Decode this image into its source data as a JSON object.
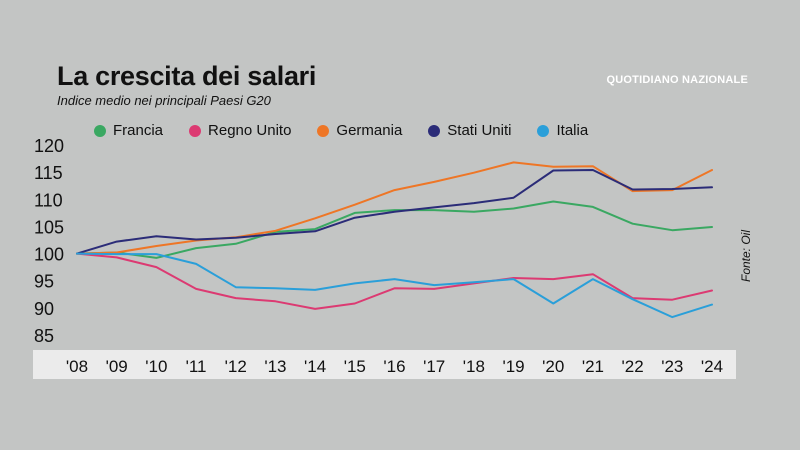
{
  "header": {
    "title": "La crescita dei salari",
    "subtitle": "Indice medio nei principali Paesi G20",
    "brand": "QUOTIDIANO NAZIONALE",
    "source": "Fonte: Oil"
  },
  "colors": {
    "Francia": "#3aa862",
    "Regno Unito": "#dc3a72",
    "Germania": "#ee7626",
    "Stati Uniti": "#2b2c78",
    "Italia": "#2a9fd9",
    "axis_band": "#ebebeb"
  },
  "chart_data": {
    "type": "line",
    "title": "La crescita dei salari",
    "subtitle": "Indice medio nei principali Paesi G20",
    "xlabel": "",
    "ylabel": "",
    "ylim": [
      85,
      120
    ],
    "yticks": [
      120,
      115,
      110,
      105,
      100,
      95,
      90,
      85
    ],
    "grid": false,
    "legend": "top",
    "categories": [
      "'08",
      "'09",
      "'10",
      "'11",
      "'12",
      "'13",
      "'14",
      "'15",
      "'16",
      "'17",
      "'18",
      "'19",
      "'20",
      "'21",
      "'22",
      "'23",
      "'24"
    ],
    "series": [
      {
        "name": "Francia",
        "values": [
          100,
          100.2,
          99.2,
          101,
          101.8,
          104,
          104.5,
          107.5,
          108,
          108,
          107.7,
          108.3,
          109.6,
          108.6,
          105.5,
          104.3,
          104.9
        ]
      },
      {
        "name": "Regno Unito",
        "values": [
          100,
          99.3,
          97.5,
          93.5,
          91.8,
          91.2,
          89.8,
          90.8,
          93.6,
          93.5,
          94.5,
          95.5,
          95.3,
          96.2,
          91.8,
          91.5,
          93.2
        ]
      },
      {
        "name": "Germania",
        "values": [
          100,
          100.2,
          101.4,
          102.4,
          103,
          104.2,
          106.5,
          109,
          111.7,
          113.2,
          114.9,
          116.8,
          116,
          116.1,
          111.5,
          111.7,
          115.4
        ]
      },
      {
        "name": "Stati Uniti",
        "values": [
          100,
          102.2,
          103.2,
          102.6,
          102.9,
          103.6,
          104.1,
          106.6,
          107.7,
          108.5,
          109.3,
          110.3,
          115.3,
          115.4,
          111.8,
          111.9,
          112.2
        ]
      },
      {
        "name": "Italia",
        "values": [
          100,
          99.9,
          99.9,
          98.1,
          93.8,
          93.6,
          93.3,
          94.5,
          95.3,
          94.2,
          94.7,
          95.3,
          90.8,
          95.3,
          91.6,
          88.3,
          90.6
        ]
      }
    ]
  }
}
